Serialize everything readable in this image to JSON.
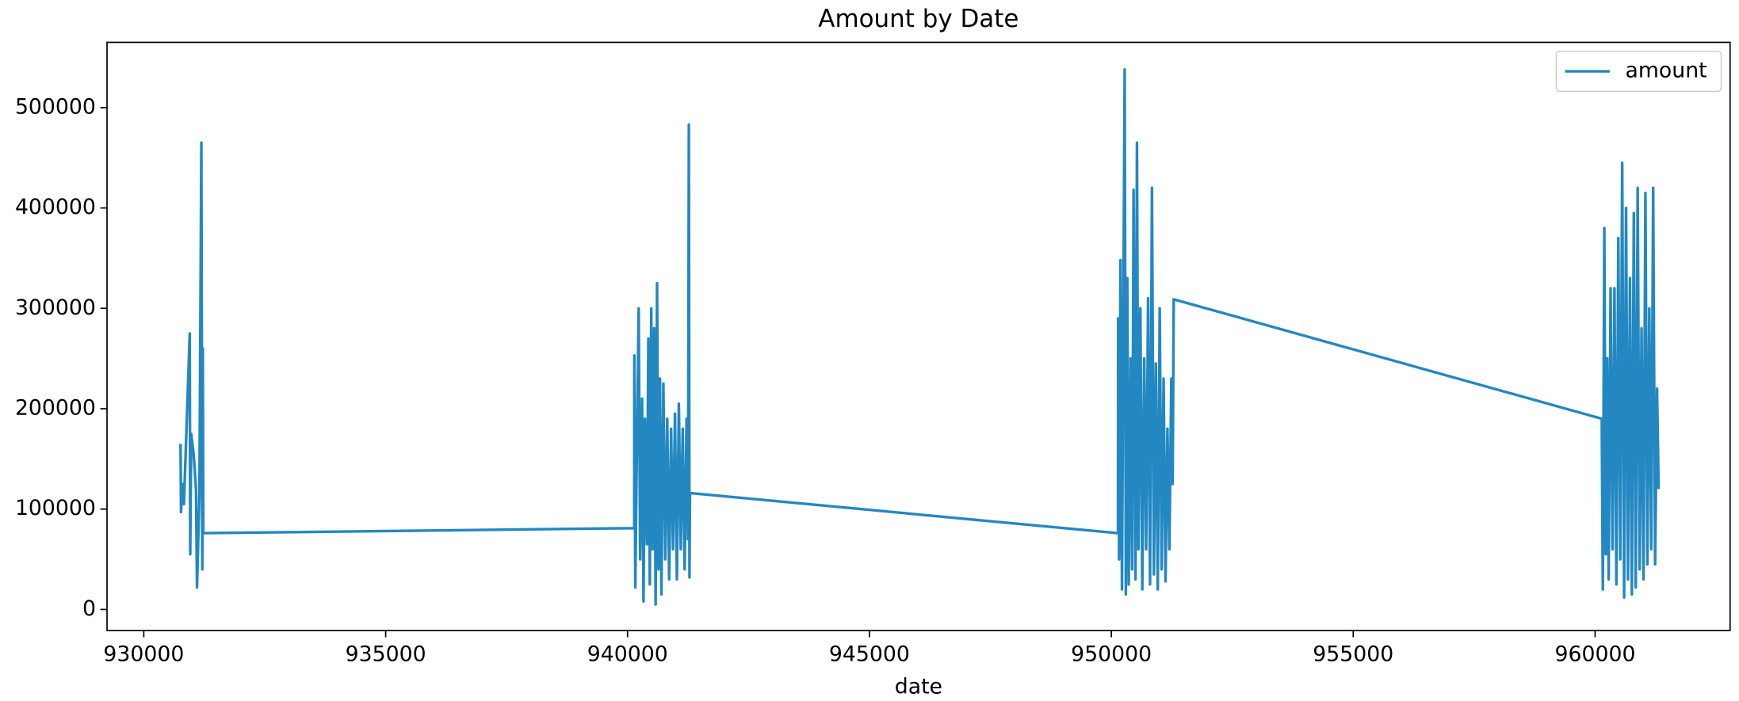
{
  "chart_data": {
    "type": "line",
    "title": "Amount by Date",
    "x_label": "date",
    "xlim": [
      929240,
      962790
    ],
    "ylim": [
      -21000,
      565000
    ],
    "xticks": [
      930000,
      935000,
      940000,
      945000,
      950000,
      955000,
      960000
    ],
    "yticks": [
      0,
      100000,
      200000,
      300000,
      400000,
      500000
    ],
    "legend": "upper right",
    "grid": false,
    "series": [
      {
        "name": "amount",
        "color": "#2388c1",
        "x": [
          930760,
          930770,
          930800,
          930830,
          930950,
          930960,
          930980,
          931030,
          931080,
          931100,
          931150,
          931190,
          931210,
          931220,
          931230,
          940138,
          940140,
          940160,
          940190,
          940230,
          940260,
          940300,
          940330,
          940360,
          940400,
          940430,
          940460,
          940490,
          940520,
          940550,
          940580,
          940610,
          940640,
          940670,
          940700,
          940740,
          940780,
          940820,
          940860,
          940900,
          940940,
          940980,
          941020,
          941060,
          941100,
          941140,
          941180,
          941220,
          941250,
          941267,
          941280,
          941290,
          950138,
          950140,
          950160,
          950190,
          950220,
          950250,
          950276,
          950300,
          950330,
          950360,
          950400,
          950430,
          950460,
          950500,
          950530,
          950560,
          950600,
          950640,
          950680,
          950720,
          950760,
          950800,
          950840,
          950880,
          950920,
          950960,
          951000,
          951040,
          951080,
          951120,
          951160,
          951200,
          951240,
          951267,
          951290,
          960138,
          960140,
          960160,
          960190,
          960220,
          960250,
          960280,
          960320,
          960360,
          960400,
          960440,
          960480,
          960520,
          960560,
          960600,
          960640,
          960680,
          960720,
          960760,
          960800,
          960840,
          960880,
          960920,
          960960,
          961000,
          961040,
          961080,
          961120,
          961160,
          961200,
          961240,
          961280,
          961313
        ],
        "values": [
          165000,
          97000,
          125000,
          105000,
          275000,
          55000,
          175000,
          155000,
          120000,
          22000,
          115000,
          465000,
          40000,
          260000,
          76000,
          81000,
          253000,
          22000,
          150000,
          300000,
          50000,
          210000,
          8000,
          190000,
          65000,
          270000,
          25000,
          300000,
          60000,
          280000,
          5000,
          325000,
          40000,
          230000,
          15000,
          225000,
          50000,
          190000,
          30000,
          180000,
          60000,
          195000,
          30000,
          205000,
          60000,
          180000,
          40000,
          190000,
          70000,
          483000,
          32000,
          116000,
          76000,
          290000,
          50000,
          348000,
          20000,
          310000,
          538000,
          15000,
          330000,
          25000,
          250000,
          40000,
          418000,
          30000,
          465000,
          60000,
          300000,
          20000,
          250000,
          60000,
          310000,
          25000,
          420000,
          35000,
          245000,
          20000,
          300000,
          40000,
          230000,
          28000,
          180000,
          60000,
          230000,
          125000,
          309000,
          190000,
          165000,
          20000,
          380000,
          55000,
          250000,
          30000,
          320000,
          60000,
          320000,
          25000,
          370000,
          50000,
          445000,
          12000,
          400000,
          30000,
          330000,
          15000,
          395000,
          22000,
          420000,
          40000,
          280000,
          30000,
          415000,
          45000,
          300000,
          60000,
          420000,
          45000,
          220000,
          120000
        ]
      }
    ]
  }
}
